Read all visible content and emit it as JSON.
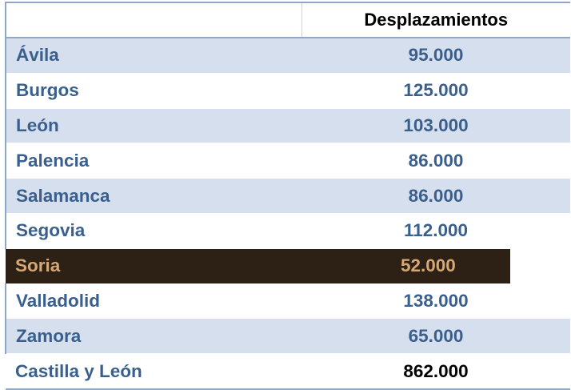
{
  "table": {
    "header": {
      "col1": "",
      "col2": "Desplazamientos"
    },
    "rows": [
      {
        "name": "Ávila",
        "value": "95.000"
      },
      {
        "name": "Burgos",
        "value": "125.000"
      },
      {
        "name": "León",
        "value": "103.000"
      },
      {
        "name": "Palencia",
        "value": "86.000"
      },
      {
        "name": "Salamanca",
        "value": "86.000"
      },
      {
        "name": "Segovia",
        "value": "112.000"
      },
      {
        "name": "Soria",
        "value": "52.000"
      },
      {
        "name": "Valladolid",
        "value": "138.000"
      },
      {
        "name": "Zamora",
        "value": "65.000"
      },
      {
        "name": "Castilla y León",
        "value": "862.000"
      }
    ]
  },
  "colors": {
    "label_blue": "#3a5f8c",
    "stripe": "#d5dfee",
    "highlight_bg": "#2d2015",
    "highlight_text": "#d5a876",
    "border": "#8fa8c8"
  }
}
